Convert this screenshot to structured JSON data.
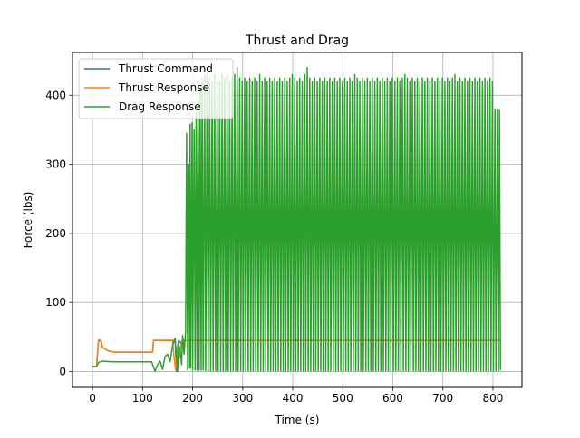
{
  "chart_data": {
    "type": "line",
    "title": "Thrust and Drag",
    "xlabel": "Time (s)",
    "ylabel": "Force (lbs)",
    "xlim": [
      -40,
      858
    ],
    "ylim": [
      -23,
      462
    ],
    "xticks": [
      0,
      100,
      200,
      300,
      400,
      500,
      600,
      700,
      800
    ],
    "yticks": [
      0,
      100,
      200,
      300,
      400
    ],
    "grid": true,
    "legend_position": "upper-left",
    "series": [
      {
        "name": "Thrust Command",
        "color": "#1f77b4",
        "points": [
          [
            0,
            7
          ],
          [
            8,
            7
          ],
          [
            12,
            45
          ],
          [
            17,
            45
          ],
          [
            20,
            35
          ],
          [
            30,
            30
          ],
          [
            45,
            28
          ],
          [
            120,
            28
          ],
          [
            122,
            45
          ],
          [
            165,
            45
          ],
          [
            168,
            0
          ],
          [
            172,
            45
          ],
          [
            178,
            40
          ],
          [
            182,
            45
          ],
          [
            815,
            45
          ]
        ]
      },
      {
        "name": "Thrust Response",
        "color": "#ff7f0e",
        "points": [
          [
            0,
            7
          ],
          [
            8,
            7
          ],
          [
            12,
            44
          ],
          [
            17,
            44
          ],
          [
            20,
            35
          ],
          [
            30,
            30
          ],
          [
            45,
            28
          ],
          [
            120,
            28
          ],
          [
            122,
            45
          ],
          [
            160,
            45
          ],
          [
            163,
            20
          ],
          [
            166,
            2
          ],
          [
            170,
            38
          ],
          [
            174,
            20
          ],
          [
            178,
            44
          ],
          [
            182,
            40
          ],
          [
            186,
            45
          ],
          [
            815,
            45
          ]
        ]
      },
      {
        "name": "Drag Response",
        "color": "#2ca02c",
        "points": [
          [
            0,
            7
          ],
          [
            8,
            7
          ],
          [
            12,
            13
          ],
          [
            20,
            15
          ],
          [
            40,
            14
          ],
          [
            118,
            14
          ],
          [
            125,
            0
          ],
          [
            130,
            10
          ],
          [
            135,
            15
          ],
          [
            140,
            3
          ],
          [
            145,
            22
          ],
          [
            150,
            25
          ],
          [
            155,
            14
          ],
          [
            160,
            38
          ],
          [
            165,
            48
          ],
          [
            168,
            20
          ],
          [
            170,
            0
          ],
          [
            172,
            40
          ],
          [
            175,
            30
          ],
          [
            178,
            10
          ],
          [
            180,
            52
          ],
          [
            183,
            25
          ],
          [
            186,
            58
          ],
          [
            188,
            345
          ],
          [
            190,
            2
          ],
          [
            192,
            300
          ],
          [
            194,
            5
          ],
          [
            195,
            358
          ],
          [
            196,
            5
          ],
          [
            199,
            360
          ],
          [
            200,
            2
          ],
          [
            203,
            350
          ],
          [
            205,
            2
          ],
          [
            207,
            375
          ],
          [
            209,
            2
          ],
          [
            211,
            390
          ],
          [
            213,
            2
          ],
          [
            215,
            410
          ],
          [
            217,
            2
          ],
          [
            219,
            425
          ],
          [
            221,
            2
          ],
          [
            224,
            430
          ],
          [
            226,
            1
          ],
          [
            229,
            440
          ],
          [
            231,
            1
          ],
          [
            234,
            425
          ],
          [
            236,
            1
          ],
          [
            239,
            420
          ],
          [
            241,
            1
          ],
          [
            244,
            430
          ],
          [
            246,
            1
          ],
          [
            249,
            420
          ],
          [
            251,
            1
          ],
          [
            254,
            420
          ],
          [
            256,
            1
          ],
          [
            259,
            430
          ],
          [
            261,
            1
          ],
          [
            264,
            425
          ],
          [
            266,
            1
          ],
          [
            269,
            430
          ],
          [
            271,
            1
          ],
          [
            274,
            420
          ],
          [
            276,
            1
          ],
          [
            279,
            425
          ],
          [
            281,
            1
          ],
          [
            284,
            430
          ],
          [
            286,
            1
          ],
          [
            289,
            440
          ],
          [
            291,
            1
          ],
          [
            294,
            425
          ],
          [
            296,
            1
          ],
          [
            299,
            420
          ],
          [
            301,
            1
          ],
          [
            304,
            425
          ],
          [
            306,
            1
          ],
          [
            309,
            420
          ],
          [
            311,
            1
          ],
          [
            314,
            425
          ],
          [
            316,
            1
          ],
          [
            319,
            420
          ],
          [
            321,
            1
          ],
          [
            324,
            425
          ],
          [
            326,
            1
          ],
          [
            329,
            420
          ],
          [
            331,
            1
          ],
          [
            334,
            430
          ],
          [
            336,
            1
          ],
          [
            339,
            420
          ],
          [
            341,
            1
          ],
          [
            344,
            425
          ],
          [
            346,
            1
          ],
          [
            349,
            420
          ],
          [
            351,
            1
          ],
          [
            354,
            425
          ],
          [
            356,
            1
          ],
          [
            359,
            420
          ],
          [
            361,
            1
          ],
          [
            364,
            425
          ],
          [
            366,
            1
          ],
          [
            369,
            420
          ],
          [
            371,
            1
          ],
          [
            374,
            425
          ],
          [
            376,
            1
          ],
          [
            379,
            420
          ],
          [
            381,
            1
          ],
          [
            384,
            425
          ],
          [
            386,
            1
          ],
          [
            389,
            420
          ],
          [
            391,
            1
          ],
          [
            394,
            425
          ],
          [
            396,
            1
          ],
          [
            399,
            430
          ],
          [
            401,
            1
          ],
          [
            404,
            425
          ],
          [
            406,
            1
          ],
          [
            409,
            420
          ],
          [
            411,
            1
          ],
          [
            414,
            425
          ],
          [
            416,
            1
          ],
          [
            419,
            420
          ],
          [
            421,
            1
          ],
          [
            424,
            430
          ],
          [
            426,
            1
          ],
          [
            429,
            440
          ],
          [
            431,
            1
          ],
          [
            434,
            425
          ],
          [
            436,
            1
          ],
          [
            439,
            420
          ],
          [
            441,
            1
          ],
          [
            444,
            425
          ],
          [
            446,
            1
          ],
          [
            449,
            420
          ],
          [
            451,
            1
          ],
          [
            454,
            425
          ],
          [
            456,
            1
          ],
          [
            459,
            420
          ],
          [
            461,
            1
          ],
          [
            464,
            425
          ],
          [
            466,
            1
          ],
          [
            469,
            420
          ],
          [
            471,
            1
          ],
          [
            474,
            425
          ],
          [
            476,
            1
          ],
          [
            479,
            420
          ],
          [
            481,
            1
          ],
          [
            484,
            425
          ],
          [
            486,
            1
          ],
          [
            489,
            420
          ],
          [
            491,
            1
          ],
          [
            494,
            425
          ],
          [
            496,
            1
          ],
          [
            499,
            420
          ],
          [
            501,
            1
          ],
          [
            504,
            425
          ],
          [
            506,
            1
          ],
          [
            509,
            420
          ],
          [
            511,
            1
          ],
          [
            514,
            425
          ],
          [
            516,
            1
          ],
          [
            519,
            420
          ],
          [
            521,
            1
          ],
          [
            524,
            430
          ],
          [
            526,
            1
          ],
          [
            529,
            425
          ],
          [
            531,
            1
          ],
          [
            534,
            420
          ],
          [
            536,
            1
          ],
          [
            539,
            425
          ],
          [
            541,
            1
          ],
          [
            544,
            420
          ],
          [
            546,
            1
          ],
          [
            549,
            425
          ],
          [
            551,
            1
          ],
          [
            554,
            420
          ],
          [
            556,
            1
          ],
          [
            559,
            425
          ],
          [
            561,
            1
          ],
          [
            564,
            420
          ],
          [
            566,
            1
          ],
          [
            569,
            425
          ],
          [
            571,
            1
          ],
          [
            574,
            420
          ],
          [
            576,
            1
          ],
          [
            579,
            425
          ],
          [
            581,
            1
          ],
          [
            584,
            420
          ],
          [
            586,
            1
          ],
          [
            589,
            425
          ],
          [
            591,
            1
          ],
          [
            594,
            420
          ],
          [
            596,
            1
          ],
          [
            599,
            425
          ],
          [
            601,
            1
          ],
          [
            604,
            420
          ],
          [
            606,
            1
          ],
          [
            609,
            425
          ],
          [
            611,
            1
          ],
          [
            614,
            420
          ],
          [
            616,
            1
          ],
          [
            619,
            425
          ],
          [
            621,
            1
          ],
          [
            624,
            430
          ],
          [
            626,
            1
          ],
          [
            629,
            425
          ],
          [
            631,
            1
          ],
          [
            634,
            420
          ],
          [
            636,
            1
          ],
          [
            639,
            425
          ],
          [
            641,
            1
          ],
          [
            644,
            420
          ],
          [
            646,
            1
          ],
          [
            649,
            425
          ],
          [
            651,
            1
          ],
          [
            654,
            420
          ],
          [
            656,
            1
          ],
          [
            659,
            425
          ],
          [
            661,
            1
          ],
          [
            664,
            420
          ],
          [
            666,
            1
          ],
          [
            669,
            425
          ],
          [
            671,
            1
          ],
          [
            674,
            420
          ],
          [
            676,
            1
          ],
          [
            679,
            425
          ],
          [
            681,
            1
          ],
          [
            684,
            420
          ],
          [
            686,
            1
          ],
          [
            689,
            425
          ],
          [
            691,
            1
          ],
          [
            694,
            420
          ],
          [
            696,
            1
          ],
          [
            699,
            425
          ],
          [
            701,
            1
          ],
          [
            704,
            420
          ],
          [
            706,
            1
          ],
          [
            709,
            425
          ],
          [
            711,
            1
          ],
          [
            714,
            420
          ],
          [
            716,
            1
          ],
          [
            719,
            425
          ],
          [
            721,
            1
          ],
          [
            724,
            430
          ],
          [
            726,
            1
          ],
          [
            729,
            420
          ],
          [
            731,
            1
          ],
          [
            734,
            425
          ],
          [
            736,
            1
          ],
          [
            739,
            420
          ],
          [
            741,
            1
          ],
          [
            744,
            425
          ],
          [
            746,
            1
          ],
          [
            749,
            420
          ],
          [
            751,
            1
          ],
          [
            754,
            425
          ],
          [
            756,
            1
          ],
          [
            759,
            420
          ],
          [
            761,
            1
          ],
          [
            764,
            425
          ],
          [
            766,
            1
          ],
          [
            769,
            420
          ],
          [
            771,
            1
          ],
          [
            774,
            425
          ],
          [
            776,
            1
          ],
          [
            779,
            420
          ],
          [
            781,
            1
          ],
          [
            784,
            425
          ],
          [
            786,
            1
          ],
          [
            789,
            420
          ],
          [
            791,
            1
          ],
          [
            794,
            425
          ],
          [
            796,
            1
          ],
          [
            799,
            420
          ],
          [
            801,
            1
          ],
          [
            804,
            380
          ],
          [
            806,
            1
          ],
          [
            809,
            380
          ],
          [
            811,
            1
          ],
          [
            813,
            378
          ],
          [
            815,
            2
          ]
        ]
      }
    ]
  }
}
